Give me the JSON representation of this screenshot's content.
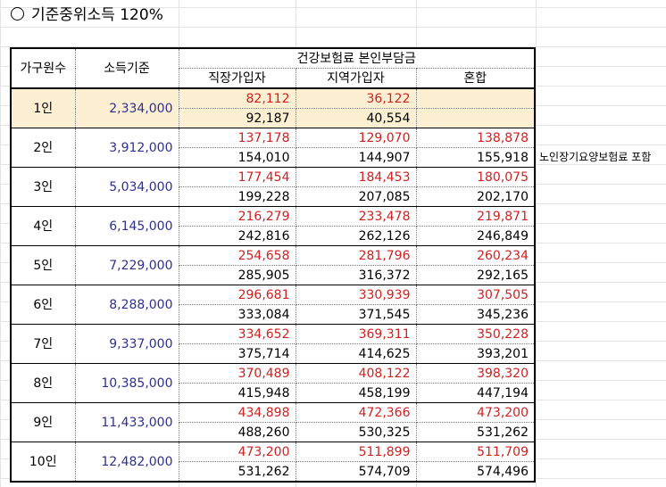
{
  "title": "기준중위소득 120%",
  "note": "노인장기요양보험료 포함",
  "headers": {
    "household": "가구원수",
    "income": "소득기준",
    "premium_group": "건강보험료 본인부담금",
    "employee": "직장가입자",
    "regional": "지역가입자",
    "mixed": "혼합"
  },
  "rows": [
    {
      "household": "1인",
      "income": "2,334,000",
      "top": [
        "82,112",
        "36,122",
        ""
      ],
      "bottom": [
        "92,187",
        "40,554",
        ""
      ]
    },
    {
      "household": "2인",
      "income": "3,912,000",
      "top": [
        "137,178",
        "129,070",
        "138,878"
      ],
      "bottom": [
        "154,010",
        "144,907",
        "155,918"
      ]
    },
    {
      "household": "3인",
      "income": "5,034,000",
      "top": [
        "177,454",
        "184,453",
        "180,075"
      ],
      "bottom": [
        "199,228",
        "207,085",
        "202,170"
      ]
    },
    {
      "household": "4인",
      "income": "6,145,000",
      "top": [
        "216,279",
        "233,478",
        "219,871"
      ],
      "bottom": [
        "242,816",
        "262,126",
        "246,849"
      ]
    },
    {
      "household": "5인",
      "income": "7,229,000",
      "top": [
        "254,658",
        "281,796",
        "260,234"
      ],
      "bottom": [
        "285,905",
        "316,372",
        "292,165"
      ]
    },
    {
      "household": "6인",
      "income": "8,288,000",
      "top": [
        "296,681",
        "330,939",
        "307,505"
      ],
      "bottom": [
        "333,084",
        "371,545",
        "345,236"
      ]
    },
    {
      "household": "7인",
      "income": "9,337,000",
      "top": [
        "334,652",
        "369,311",
        "350,228"
      ],
      "bottom": [
        "375,714",
        "414,625",
        "393,201"
      ]
    },
    {
      "household": "8인",
      "income": "10,385,000",
      "top": [
        "370,489",
        "408,122",
        "398,320"
      ],
      "bottom": [
        "415,948",
        "458,199",
        "447,194"
      ]
    },
    {
      "household": "9인",
      "income": "11,433,000",
      "top": [
        "434,898",
        "472,366",
        "473,200"
      ],
      "bottom": [
        "488,260",
        "530,325",
        "531,262"
      ]
    },
    {
      "household": "10인",
      "income": "12,482,000",
      "top": [
        "473,200",
        "511,899",
        "511,709"
      ],
      "bottom": [
        "531,262",
        "574,709",
        "574,496"
      ]
    }
  ],
  "colors": {
    "top_value": "#d02020",
    "income": "#2f2f8f",
    "highlight": "#fdf0d2"
  }
}
